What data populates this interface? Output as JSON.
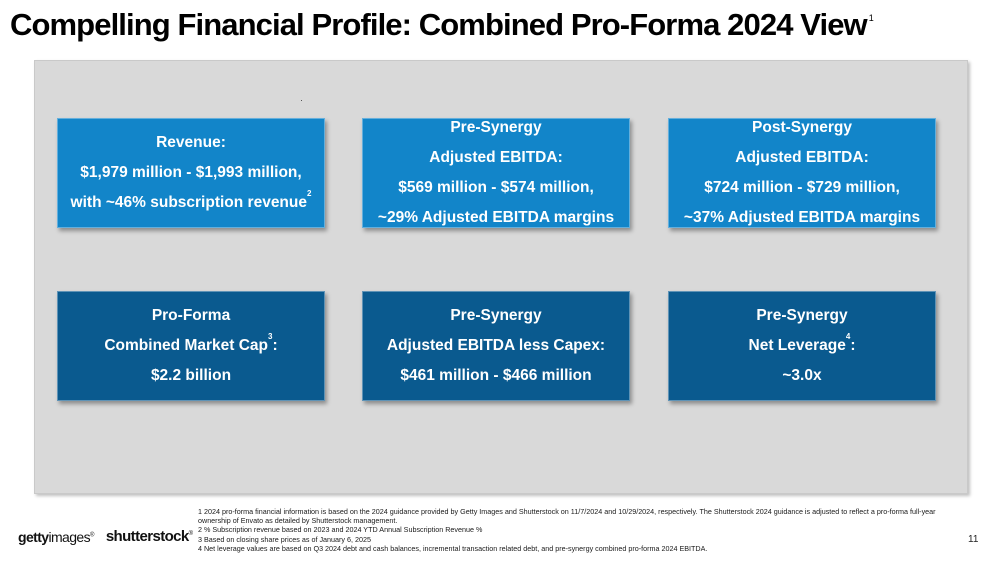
{
  "slide": {
    "title": "Compelling Financial Profile: Combined Pro-Forma 2024 View",
    "title_sup": "1",
    "page_number": "11"
  },
  "cards": [
    {
      "line1": "Revenue:",
      "line2": "$1,979 million - $1,993 million,",
      "line3": "with ~46% subscription revenue",
      "line3_sup": "2"
    },
    {
      "line1": "Pre-Synergy",
      "line2": "Adjusted EBITDA:",
      "line3": "$569 million - $574 million,",
      "line4": "~29% Adjusted EBITDA margins"
    },
    {
      "line1": "Post-Synergy",
      "line2": "Adjusted EBITDA:",
      "line3": "$724 million - $729 million,",
      "line4": "~37% Adjusted EBITDA margins"
    },
    {
      "line1": "Pro-Forma",
      "line2": "Combined Market Cap",
      "line2_sup": "3",
      "line2_suffix": ":",
      "line3": "$2.2 billion"
    },
    {
      "line1": "Pre-Synergy",
      "line2": "Adjusted EBITDA less Capex:",
      "line3": "$461 million - $466 million"
    },
    {
      "line1": "Pre-Synergy",
      "line2": "Net Leverage",
      "line2_sup": "4",
      "line2_suffix": ":",
      "line3": "~3.0x"
    }
  ],
  "footnotes": [
    "1 2024 pro-forma financial information is based on the 2024 guidance provided by Getty Images and Shutterstock on 11/7/2024 and 10/29/2024, respectively.  The Shutterstock 2024 guidance is adjusted to reflect a pro-forma full-year ownership of Envato as detailed by Shutterstock management.",
    "2  % Subscription revenue based on 2023 and 2024 YTD Annual Subscription Revenue %",
    "3 Based on closing share prices as of January 6, 2025",
    "4 Net leverage values are based on Q3 2024 debt and cash balances, incremental transaction related debt, and pre-synergy combined pro-forma 2024 EBITDA."
  ],
  "logos": {
    "getty_bold": "getty",
    "getty_regular": "images",
    "getty_mark": "®",
    "shutterstock": "shutterstock",
    "shutterstock_mark": "®"
  },
  "colors": {
    "card_light": "#1285c9",
    "card_dark": "#0a5a8f",
    "panel": "#d9d9d9"
  }
}
